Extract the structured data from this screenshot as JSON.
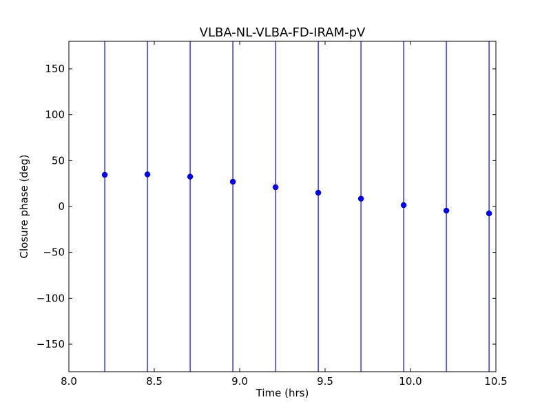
{
  "chart_data": {
    "type": "scatter",
    "title": "VLBA-NL-VLBA-FD-IRAM-pV",
    "xlabel": "Time (hrs)",
    "ylabel": "Closure phase (deg)",
    "xlim": [
      8.0,
      10.5
    ],
    "ylim": [
      -180,
      180
    ],
    "xticks": [
      8.0,
      8.5,
      9.0,
      9.5,
      10.0,
      10.5
    ],
    "xtick_labels": [
      "8.0",
      "8.5",
      "9.0",
      "9.5",
      "10.0",
      "10.5"
    ],
    "yticks": [
      -150,
      -100,
      -50,
      0,
      50,
      100,
      150
    ],
    "ytick_labels": [
      "−150",
      "−100",
      "−50",
      "0",
      "50",
      "100",
      "150"
    ],
    "grid": false,
    "series": [
      {
        "color": "#0000ff",
        "x": [
          8.21,
          8.46,
          8.71,
          8.96,
          9.21,
          9.46,
          9.71,
          9.96,
          10.21,
          10.46
        ],
        "y": [
          34.5,
          35.0,
          32.5,
          27.0,
          21.0,
          15.0,
          8.5,
          1.5,
          -4.5,
          -7.5
        ],
        "error_low": [
          -180,
          -180,
          -180,
          -180,
          -180,
          -180,
          -180,
          -180,
          -180,
          -180
        ],
        "error_high": [
          180,
          180,
          180,
          180,
          180,
          180,
          180,
          180,
          180,
          180
        ]
      }
    ]
  }
}
